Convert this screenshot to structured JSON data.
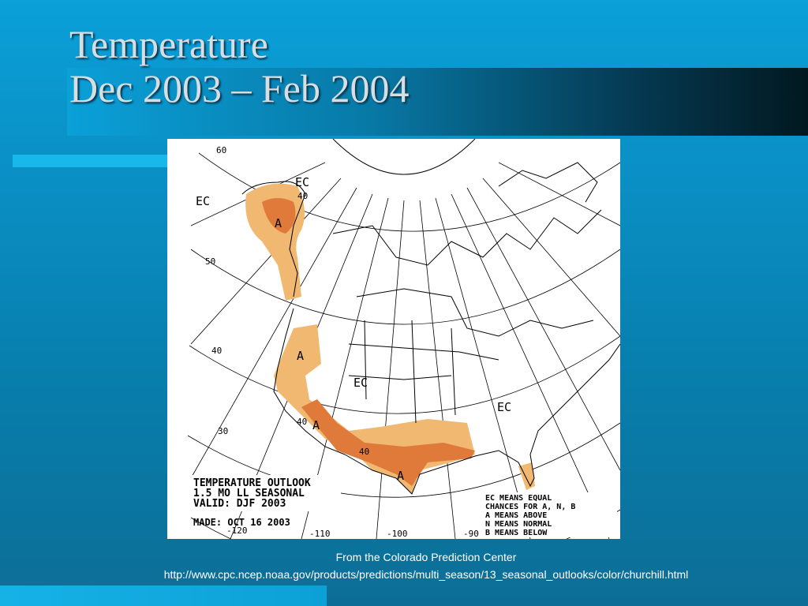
{
  "slide": {
    "title_line1": "Temperature",
    "title_line2": "Dec 2003 – Feb 2004"
  },
  "map": {
    "lat_labels": [
      "60",
      "50",
      "40",
      "30"
    ],
    "lon_labels": [
      "-120",
      "-110",
      "-100",
      "-90"
    ],
    "region_labels": {
      "ec_alaska": "EC",
      "ec_north": "EC",
      "ec_central": "EC",
      "ec_east": "EC",
      "a_alaska": "A",
      "a_west": "A",
      "a_southwest": "A",
      "a_south": "A",
      "val_40_alaska": "40",
      "val_40_west": "40",
      "val_40_south": "40"
    },
    "outlook_text": [
      "TEMPERATURE OUTLOOK",
      "1.5 MO LL SEASONAL",
      "VALID: DJF 2003"
    ],
    "made_text": "MADE:  OCT 16 2003",
    "legend_lines": [
      "EC MEANS EQUAL",
      "CHANCES FOR A, N, B",
      "A MEANS ABOVE",
      "N MEANS NORMAL",
      "B MEANS BELOW"
    ],
    "colors": {
      "above_light": "#f0b870",
      "above_dark": "#e07a3a",
      "lines": "#000000"
    }
  },
  "caption": {
    "line1": "From the Colorado Prediction Center",
    "line2": "http://www.cpc.ncep.noaa.gov/products/predictions/multi_season/13_seasonal_outlooks/color/churchill.html"
  }
}
